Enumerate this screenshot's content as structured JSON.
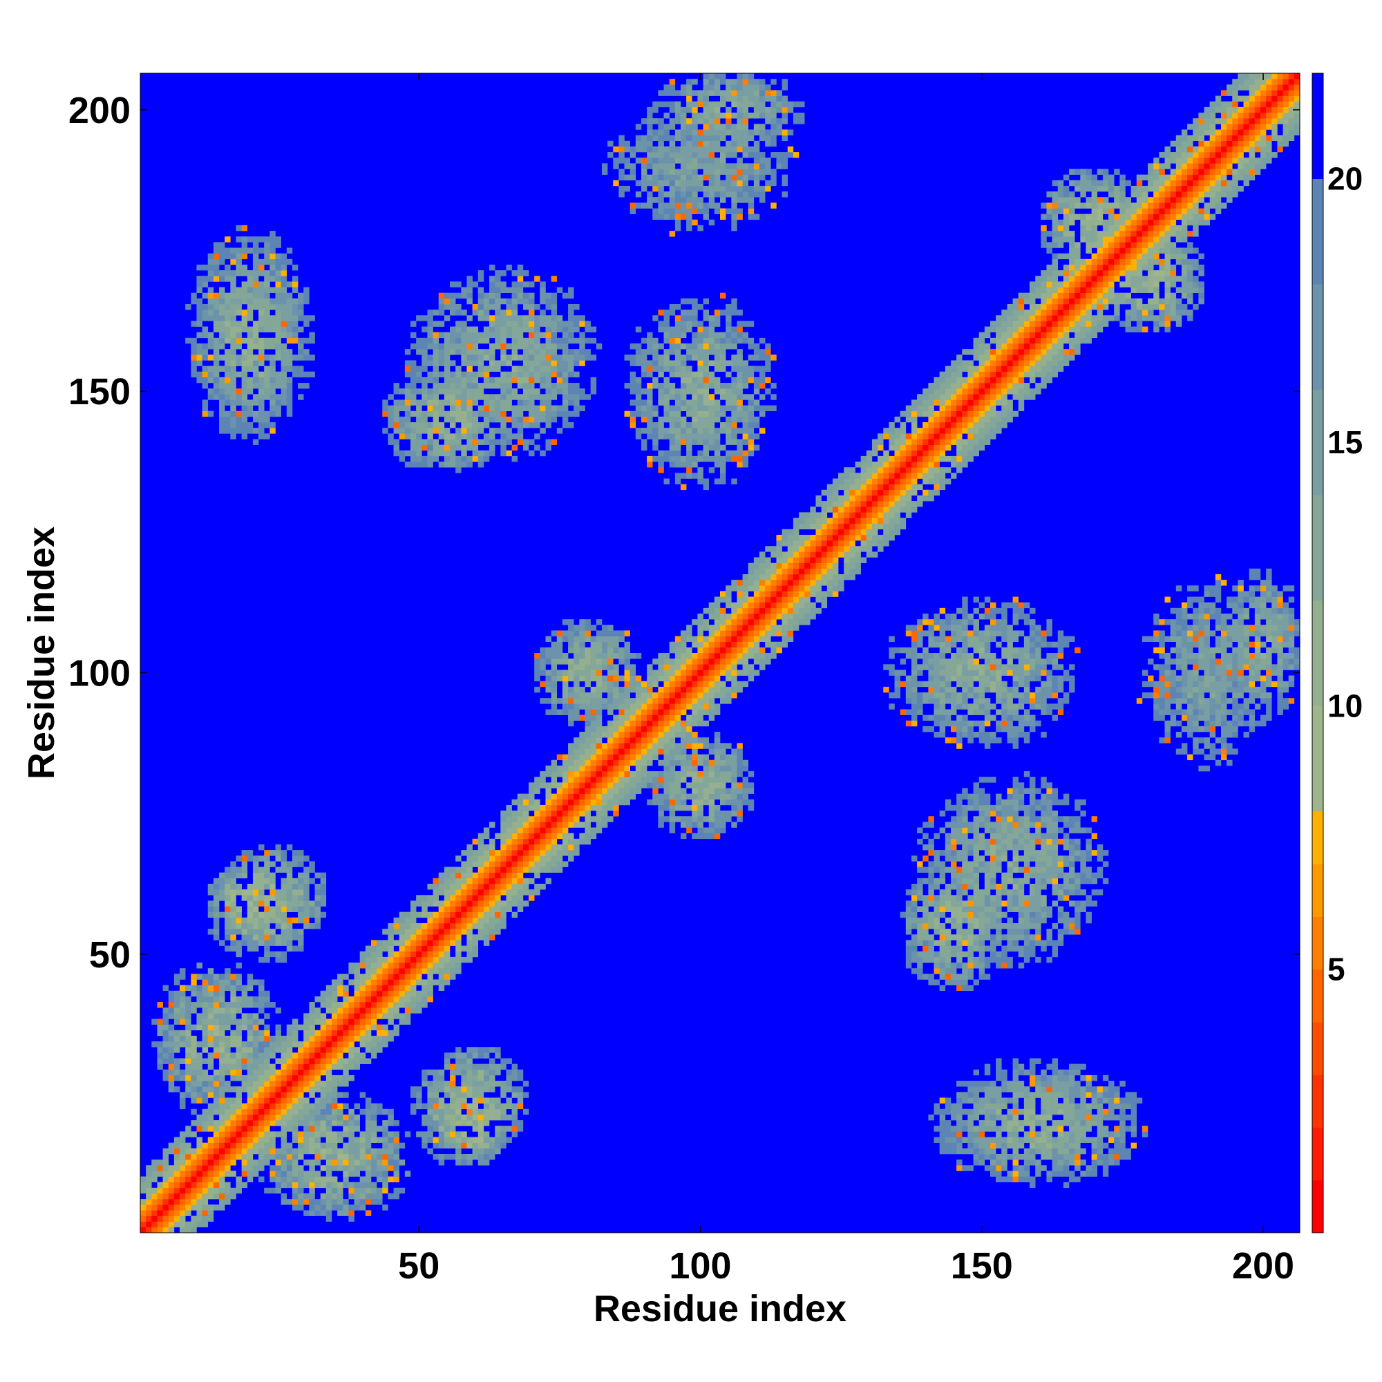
{
  "chart_data": {
    "type": "heatmap",
    "title": "",
    "xlabel": "Residue index",
    "ylabel": "Residue index",
    "n_residues": 206,
    "xlim": [
      0.5,
      206.5
    ],
    "ylim": [
      0.5,
      206.5
    ],
    "x_ticks": [
      50,
      100,
      150,
      200
    ],
    "y_ticks": [
      50,
      100,
      150,
      200
    ],
    "colorbar": {
      "ticks": [
        5,
        10,
        15,
        20
      ],
      "range": [
        0,
        22
      ],
      "levels": [
        {
          "upper": 1,
          "color": "#ff0000"
        },
        {
          "upper": 2,
          "color": "#ff1a00"
        },
        {
          "upper": 3,
          "color": "#ff3300"
        },
        {
          "upper": 4,
          "color": "#ff4d00"
        },
        {
          "upper": 5,
          "color": "#ff6600"
        },
        {
          "upper": 6,
          "color": "#ff8000"
        },
        {
          "upper": 7,
          "color": "#ff9900"
        },
        {
          "upper": 8,
          "color": "#ffb000"
        },
        {
          "upper": 10,
          "color": "#9fb58c"
        },
        {
          "upper": 12,
          "color": "#94b090"
        },
        {
          "upper": 14,
          "color": "#85a798"
        },
        {
          "upper": 16,
          "color": "#7a9fa2"
        },
        {
          "upper": 18,
          "color": "#6d93ab"
        },
        {
          "upper": 20,
          "color": "#5c85b5"
        },
        {
          "upper": 22,
          "color": "#0000ff"
        }
      ]
    },
    "contact_blocks": [
      {
        "i": 35,
        "j": 14,
        "ri": 14,
        "rj": 12,
        "d": 11
      },
      {
        "i": 58,
        "j": 22,
        "ri": 10,
        "rj": 10,
        "d": 11
      },
      {
        "i": 24,
        "j": 60,
        "ri": 10,
        "rj": 10,
        "d": 11
      },
      {
        "i": 60,
        "j": 20,
        "ri": 6,
        "rj": 8,
        "d": 9
      },
      {
        "i": 20,
        "j": 160,
        "ri": 12,
        "rj": 20,
        "d": 13
      },
      {
        "i": 160,
        "j": 20,
        "ri": 20,
        "rj": 12,
        "d": 13
      },
      {
        "i": 65,
        "j": 155,
        "ri": 18,
        "rj": 18,
        "d": 13
      },
      {
        "i": 155,
        "j": 65,
        "ri": 18,
        "rj": 18,
        "d": 13
      },
      {
        "i": 100,
        "j": 150,
        "ri": 14,
        "rj": 18,
        "d": 13
      },
      {
        "i": 150,
        "j": 100,
        "ri": 18,
        "rj": 14,
        "d": 13
      },
      {
        "i": 100,
        "j": 190,
        "ri": 20,
        "rj": 14,
        "d": 15
      },
      {
        "i": 190,
        "j": 100,
        "ri": 14,
        "rj": 20,
        "d": 15
      },
      {
        "i": 80,
        "j": 100,
        "ri": 10,
        "rj": 10,
        "d": 12
      },
      {
        "i": 100,
        "j": 80,
        "ri": 10,
        "rj": 10,
        "d": 12
      },
      {
        "i": 160,
        "j": 20,
        "ri": 18,
        "rj": 10,
        "d": 12
      },
      {
        "i": 170,
        "j": 180,
        "ri": 10,
        "rj": 10,
        "d": 11
      },
      {
        "i": 180,
        "j": 170,
        "ri": 10,
        "rj": 10,
        "d": 11
      },
      {
        "i": 145,
        "j": 55,
        "ri": 10,
        "rj": 12,
        "d": 12
      },
      {
        "i": 55,
        "j": 145,
        "ri": 12,
        "rj": 10,
        "d": 12
      },
      {
        "i": 200,
        "j": 105,
        "ri": 8,
        "rj": 14,
        "d": 13
      },
      {
        "i": 105,
        "j": 200,
        "ri": 14,
        "rj": 8,
        "d": 13
      }
    ]
  }
}
